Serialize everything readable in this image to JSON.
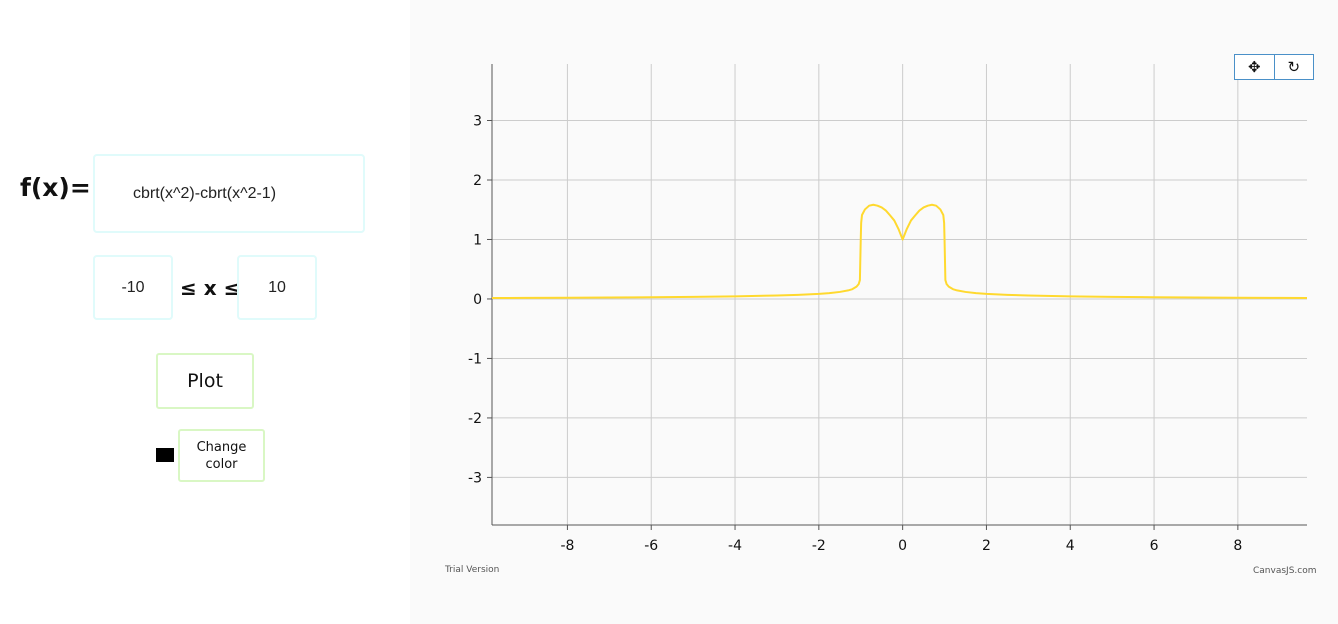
{
  "form": {
    "fx_label": "f(x)=",
    "expression": "cbrt(x^2)-cbrt(x^2-1)",
    "x_min": "-10",
    "leq_label": "≤ x ≤",
    "x_max": "10",
    "plot_label": "Plot",
    "change_color_label": "Change color",
    "swatch_color": "#000000"
  },
  "chart_toolbar": {
    "pan_icon": "pan-icon",
    "pan_glyph": "✥",
    "reset_icon": "reset-icon",
    "reset_glyph": "↻"
  },
  "footer": {
    "trial": "Trial Version",
    "credit": "CanvasJS.com"
  },
  "colors": {
    "line": "#ffd92f",
    "grid": "#cccccc",
    "axis": "#555555",
    "background": "#fafafa"
  },
  "chart_data": {
    "type": "line",
    "function": "cbrt(x^2)-cbrt(x^2-1)",
    "x_tick_labels": [
      "-8",
      "-6",
      "-4",
      "-2",
      "0",
      "2",
      "4",
      "6",
      "8"
    ],
    "y_tick_labels": [
      "3",
      "2",
      "1",
      "0",
      "-1",
      "-2",
      "-3"
    ],
    "xlim": [
      -9.8,
      9.65
    ],
    "ylim": [
      -3.8,
      3.95
    ],
    "grid": true,
    "line_color": "#ffd92f",
    "series": [
      {
        "x": [
          -9.8,
          -9,
          -8,
          -7,
          -6,
          -5,
          -4,
          -3,
          -2.5,
          -2,
          -1.75,
          -1.5,
          -1.3,
          -1.2,
          -1.1,
          -1.05,
          -1.02,
          -1.0,
          -0.99,
          -0.97,
          -0.9,
          -0.8,
          -0.7,
          -0.6,
          -0.5,
          -0.4,
          -0.3,
          -0.2,
          -0.1,
          0,
          0.1,
          0.2,
          0.3,
          0.4,
          0.5,
          0.6,
          0.7,
          0.8,
          0.9,
          0.97,
          0.99,
          1.0,
          1.02,
          1.05,
          1.1,
          1.2,
          1.3,
          1.5,
          1.75,
          2,
          2.5,
          3,
          4,
          5,
          6,
          7,
          8,
          9,
          9.65
        ],
        "y": [
          0.016,
          0.018,
          0.021,
          0.024,
          0.029,
          0.035,
          0.044,
          0.058,
          0.069,
          0.085,
          0.098,
          0.118,
          0.144,
          0.165,
          0.207,
          0.249,
          0.317,
          1.0,
          1.277,
          1.412,
          1.505,
          1.568,
          1.584,
          1.568,
          1.538,
          1.486,
          1.405,
          1.32,
          1.178,
          1.0,
          1.178,
          1.32,
          1.405,
          1.486,
          1.538,
          1.568,
          1.584,
          1.568,
          1.505,
          1.412,
          1.277,
          1.0,
          0.317,
          0.249,
          0.207,
          0.165,
          0.144,
          0.118,
          0.098,
          0.085,
          0.069,
          0.058,
          0.044,
          0.035,
          0.029,
          0.024,
          0.021,
          0.018,
          0.017
        ]
      }
    ]
  }
}
